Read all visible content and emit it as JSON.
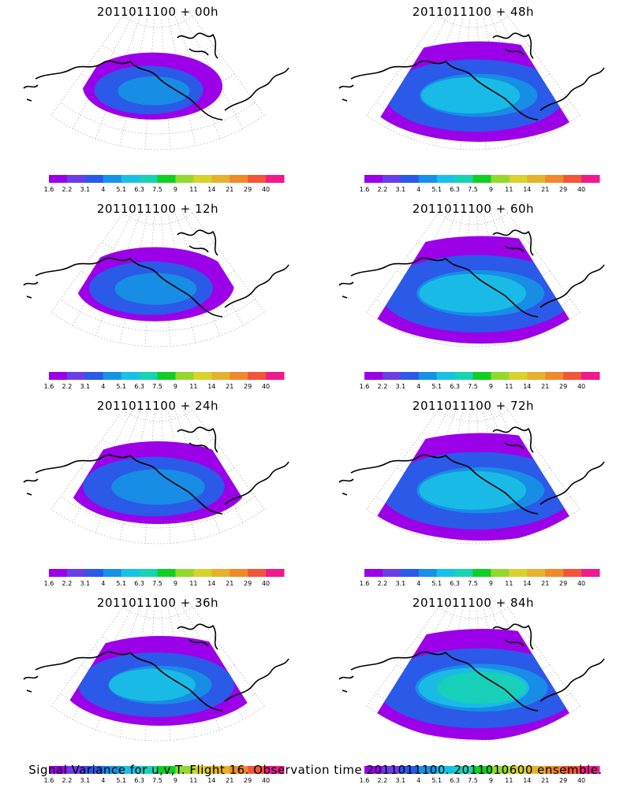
{
  "panels": [
    {
      "title": "2011011100 + 00h",
      "intensity": 0.1,
      "extent": 0.28
    },
    {
      "title": "2011011100 + 48h",
      "intensity": 0.45,
      "extent": 0.75
    },
    {
      "title": "2011011100 + 12h",
      "intensity": 0.25,
      "extent": 0.38
    },
    {
      "title": "2011011100 + 60h",
      "intensity": 0.45,
      "extent": 0.85
    },
    {
      "title": "2011011100 + 24h",
      "intensity": 0.35,
      "extent": 0.5
    },
    {
      "title": "2011011100 + 72h",
      "intensity": 0.55,
      "extent": 0.85
    },
    {
      "title": "2011011100 + 36h",
      "intensity": 0.45,
      "extent": 0.6
    },
    {
      "title": "2011011100 + 84h",
      "intensity": 0.6,
      "extent": 0.9
    }
  ],
  "colorbar": {
    "colors": [
      "#9b00e8",
      "#6a3ee6",
      "#2b59e8",
      "#1592e6",
      "#19c0e6",
      "#18d2b4",
      "#10cf24",
      "#94d82c",
      "#d8d32c",
      "#e6b12c",
      "#ef8a2b",
      "#f2553a",
      "#f01a8c"
    ],
    "ticks": [
      "1.6",
      "2.2",
      "3.1",
      "4",
      "5.1",
      "6.3",
      "7.5",
      "9",
      "11",
      "14",
      "21",
      "29",
      "40"
    ]
  },
  "caption": "Signal Variance for u,v,T. Flight 16. Observation time 2011011100. 2011010600 ensemble."
}
